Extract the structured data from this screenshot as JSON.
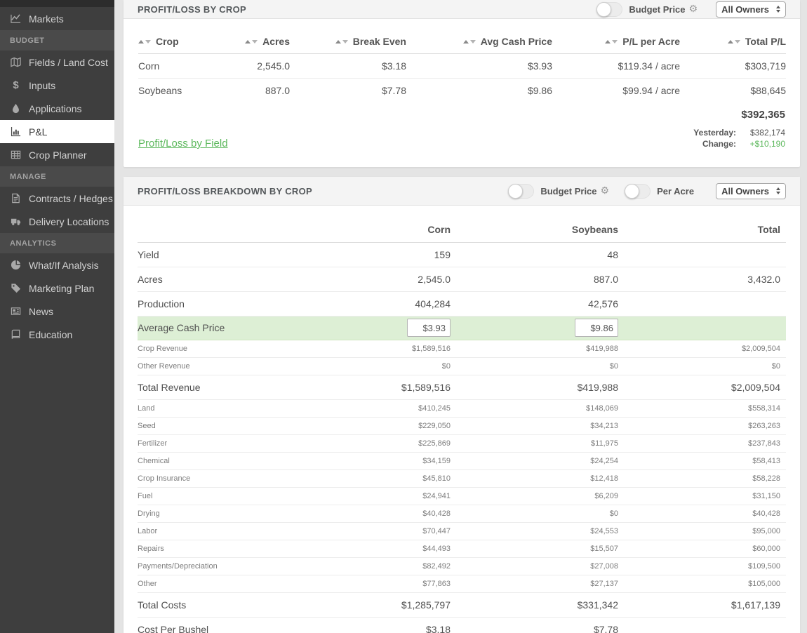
{
  "colors": {
    "accent_green": "#5cb85c",
    "highlight_row_bg": "#ddefd5",
    "sidebar_bg": "#3e3e3e"
  },
  "sidebar": {
    "sections": [
      "BUDGET",
      "MANAGE",
      "ANALYTICS"
    ],
    "active_item": "P&L",
    "items": [
      "Markets",
      "Fields / Land Cost",
      "Inputs",
      "Applications",
      "P&L",
      "Crop Planner",
      "Contracts / Hedges",
      "Delivery Locations",
      "What/If Analysis",
      "Marketing Plan",
      "News",
      "Education"
    ]
  },
  "panel1": {
    "title": "PROFIT/LOSS BY CROP",
    "controls": {
      "budget_price_label": "Budget Price",
      "owners_value": "All Owners"
    },
    "table": {
      "columns": [
        "Crop",
        "Acres",
        "Break Even",
        "Avg Cash Price",
        "P/L per Acre",
        "Total P/L"
      ],
      "rows": [
        [
          "Corn",
          "2,545.0",
          "$3.18",
          "$3.93",
          "$119.34 / acre",
          "$303,719"
        ],
        [
          "Soybeans",
          "887.0",
          "$7.78",
          "$9.86",
          "$99.94 / acre",
          "$88,645"
        ]
      ],
      "grand_total": "$392,365"
    },
    "link_label": "Profit/Loss by Field",
    "yesterday_label": "Yesterday:",
    "yesterday_value": "$382,174",
    "change_label": "Change:",
    "change_value": "+$10,190"
  },
  "panel2": {
    "title": "PROFIT/LOSS BREAKDOWN BY CROP",
    "controls": {
      "budget_price_label": "Budget Price",
      "per_acre_label": "Per Acre",
      "owners_value": "All Owners"
    },
    "columns": [
      "Corn",
      "Soybeans",
      "Total"
    ],
    "rows": [
      {
        "label": "Yield",
        "type": "major",
        "corn": "159",
        "soybeans": "48",
        "total": ""
      },
      {
        "label": "Acres",
        "type": "major",
        "corn": "2,545.0",
        "soybeans": "887.0",
        "total": "3,432.0"
      },
      {
        "label": "Production",
        "type": "major",
        "corn": "404,284",
        "soybeans": "42,576",
        "total": ""
      },
      {
        "label": "Average Cash Price",
        "type": "input",
        "corn": "$3.93",
        "soybeans": "$9.86",
        "total": ""
      },
      {
        "label": "Crop Revenue",
        "type": "sub",
        "corn": "$1,589,516",
        "soybeans": "$419,988",
        "total": "$2,009,504"
      },
      {
        "label": "Other Revenue",
        "type": "sub",
        "corn": "$0",
        "soybeans": "$0",
        "total": "$0"
      },
      {
        "label": "Total Revenue",
        "type": "major",
        "corn": "$1,589,516",
        "soybeans": "$419,988",
        "total": "$2,009,504"
      },
      {
        "label": "Land",
        "type": "sub",
        "corn": "$410,245",
        "soybeans": "$148,069",
        "total": "$558,314"
      },
      {
        "label": "Seed",
        "type": "sub",
        "corn": "$229,050",
        "soybeans": "$34,213",
        "total": "$263,263"
      },
      {
        "label": "Fertilizer",
        "type": "sub",
        "corn": "$225,869",
        "soybeans": "$11,975",
        "total": "$237,843"
      },
      {
        "label": "Chemical",
        "type": "sub",
        "corn": "$34,159",
        "soybeans": "$24,254",
        "total": "$58,413"
      },
      {
        "label": "Crop Insurance",
        "type": "sub",
        "corn": "$45,810",
        "soybeans": "$12,418",
        "total": "$58,228"
      },
      {
        "label": "Fuel",
        "type": "sub",
        "corn": "$24,941",
        "soybeans": "$6,209",
        "total": "$31,150"
      },
      {
        "label": "Drying",
        "type": "sub",
        "corn": "$40,428",
        "soybeans": "$0",
        "total": "$40,428"
      },
      {
        "label": "Labor",
        "type": "sub",
        "corn": "$70,447",
        "soybeans": "$24,553",
        "total": "$95,000"
      },
      {
        "label": "Repairs",
        "type": "sub",
        "corn": "$44,493",
        "soybeans": "$15,507",
        "total": "$60,000"
      },
      {
        "label": "Payments/Depreciation",
        "type": "sub",
        "corn": "$82,492",
        "soybeans": "$27,008",
        "total": "$109,500"
      },
      {
        "label": "Other",
        "type": "sub",
        "corn": "$77,863",
        "soybeans": "$27,137",
        "total": "$105,000"
      },
      {
        "label": "Total Costs",
        "type": "major",
        "corn": "$1,285,797",
        "soybeans": "$331,342",
        "total": "$1,617,139"
      },
      {
        "label": "Cost Per Bushel",
        "type": "major",
        "corn": "$3.18",
        "soybeans": "$7.78",
        "total": ""
      }
    ]
  }
}
